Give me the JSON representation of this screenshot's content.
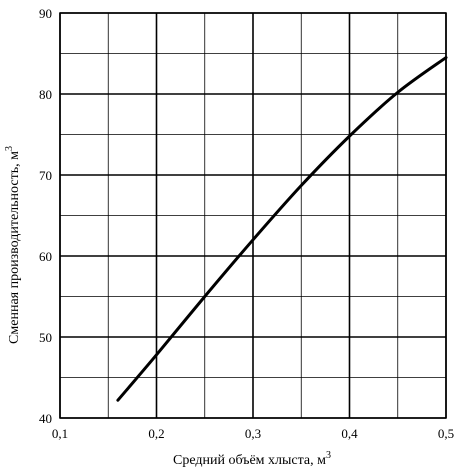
{
  "chart_data": {
    "type": "line",
    "title": "",
    "xlabel": "Средний объём хлыста, м",
    "xlabel_sup": "3",
    "ylabel": "Сменная производительность, м",
    "ylabel_sup": "3",
    "xlim": [
      0.1,
      0.5
    ],
    "ylim": [
      40,
      90
    ],
    "x_ticks": [
      0.1,
      0.2,
      0.3,
      0.4,
      0.5
    ],
    "x_tick_labels": [
      "0,1",
      "0,2",
      "0,3",
      "0,4",
      "0,5"
    ],
    "x_minor_gridlines": [
      0.15,
      0.25,
      0.35,
      0.45
    ],
    "y_ticks": [
      40,
      50,
      60,
      70,
      80,
      90
    ],
    "y_tick_labels": [
      "40",
      "50",
      "60",
      "70",
      "80",
      "90"
    ],
    "y_minor_gridlines": [
      45,
      55,
      65,
      75,
      85
    ],
    "grid": true,
    "line_color": "#000000",
    "series": [
      {
        "name": "",
        "x": [
          0.16,
          0.2,
          0.25,
          0.3,
          0.35,
          0.4,
          0.45,
          0.5
        ],
        "y": [
          42.2,
          47.8,
          55.0,
          62.0,
          68.7,
          74.8,
          80.2,
          84.5
        ]
      }
    ]
  }
}
